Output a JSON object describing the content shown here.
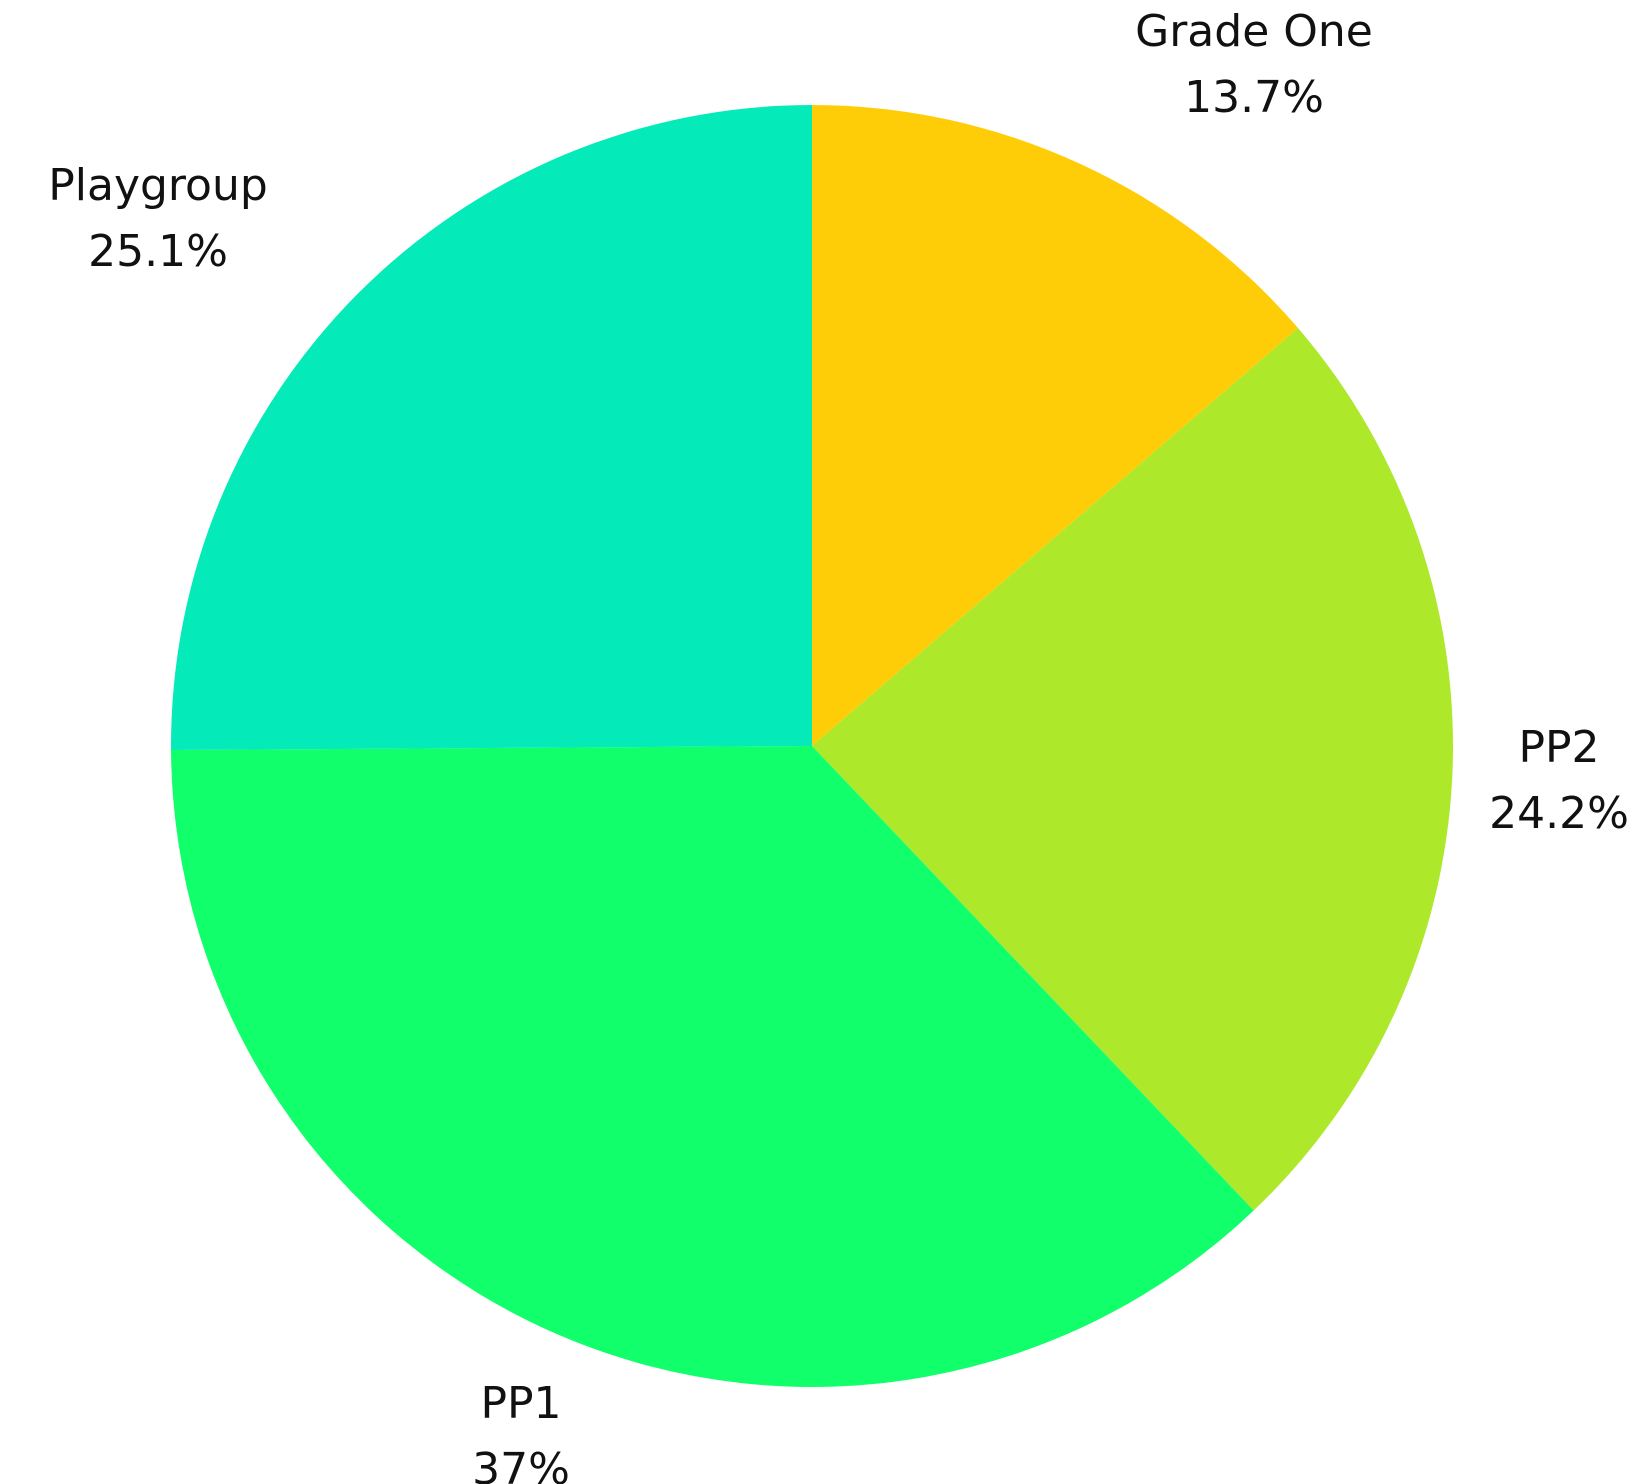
{
  "chart_data": {
    "type": "pie",
    "categories": [
      "Grade One",
      "PP2",
      "PP1",
      "Playgroup"
    ],
    "values": [
      13.7,
      24.2,
      37,
      25.1
    ],
    "value_labels": [
      "13.7%",
      "24.2%",
      "37%",
      "25.1%"
    ],
    "colors": [
      "#ffcd08",
      "#aee82a",
      "#10ff6a",
      "#04eab8"
    ]
  }
}
